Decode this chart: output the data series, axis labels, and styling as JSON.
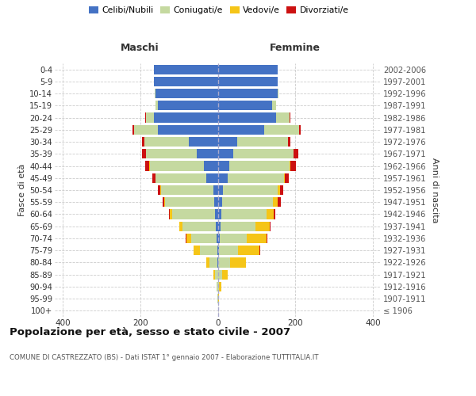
{
  "age_groups": [
    "100+",
    "95-99",
    "90-94",
    "85-89",
    "80-84",
    "75-79",
    "70-74",
    "65-69",
    "60-64",
    "55-59",
    "50-54",
    "45-49",
    "40-44",
    "35-39",
    "30-34",
    "25-29",
    "20-24",
    "15-19",
    "10-14",
    "5-9",
    "0-4"
  ],
  "birth_years": [
    "≤ 1906",
    "1907-1911",
    "1912-1916",
    "1917-1921",
    "1922-1926",
    "1927-1931",
    "1932-1936",
    "1937-1941",
    "1942-1946",
    "1947-1951",
    "1952-1956",
    "1957-1961",
    "1962-1966",
    "1967-1971",
    "1972-1976",
    "1977-1981",
    "1982-1986",
    "1987-1991",
    "1992-1996",
    "1997-2001",
    "2002-2006"
  ],
  "maschi": {
    "celibi": [
      0,
      0,
      0,
      0,
      1,
      2,
      4,
      6,
      8,
      10,
      12,
      30,
      35,
      55,
      75,
      155,
      165,
      155,
      160,
      165,
      165
    ],
    "coniugati": [
      0,
      1,
      3,
      8,
      20,
      45,
      65,
      85,
      110,
      125,
      135,
      130,
      140,
      130,
      115,
      60,
      20,
      5,
      2,
      0,
      0
    ],
    "vedovi": [
      0,
      0,
      1,
      3,
      8,
      15,
      12,
      8,
      5,
      3,
      2,
      1,
      1,
      0,
      0,
      0,
      0,
      0,
      0,
      0,
      0
    ],
    "divorziati": [
      0,
      0,
      0,
      0,
      0,
      0,
      1,
      1,
      2,
      5,
      6,
      8,
      12,
      10,
      5,
      5,
      1,
      0,
      0,
      0,
      0
    ]
  },
  "femmine": {
    "nubili": [
      0,
      0,
      0,
      1,
      2,
      3,
      5,
      8,
      10,
      12,
      14,
      25,
      30,
      40,
      50,
      120,
      150,
      140,
      155,
      155,
      155
    ],
    "coniugate": [
      0,
      1,
      4,
      10,
      30,
      50,
      70,
      90,
      115,
      130,
      140,
      145,
      155,
      155,
      130,
      90,
      35,
      10,
      2,
      0,
      0
    ],
    "vedove": [
      0,
      2,
      5,
      15,
      40,
      55,
      50,
      35,
      20,
      12,
      6,
      3,
      2,
      1,
      1,
      0,
      0,
      0,
      0,
      0,
      0
    ],
    "divorziate": [
      0,
      0,
      0,
      0,
      1,
      1,
      2,
      2,
      4,
      8,
      8,
      10,
      15,
      12,
      6,
      4,
      1,
      0,
      0,
      0,
      0
    ]
  },
  "colors": {
    "celibi_nubili": "#4472C4",
    "coniugati_e": "#c5d9a0",
    "vedovi_e": "#f5c518",
    "divorziati_e": "#cc1111"
  },
  "xlim": 420,
  "xticks": [
    -400,
    -200,
    0,
    200,
    400
  ],
  "title": "Popolazione per età, sesso e stato civile - 2007",
  "subtitle": "COMUNE DI CASTREZZATO (BS) - Dati ISTAT 1° gennaio 2007 - Elaborazione TUTTITALIA.IT",
  "ylabel_left": "Fasce di età",
  "ylabel_right": "Anni di nascita",
  "label_maschi": "Maschi",
  "label_femmine": "Femmine",
  "legend_labels": [
    "Celibi/Nubili",
    "Coniugati/e",
    "Vedovi/e",
    "Divorziati/e"
  ]
}
